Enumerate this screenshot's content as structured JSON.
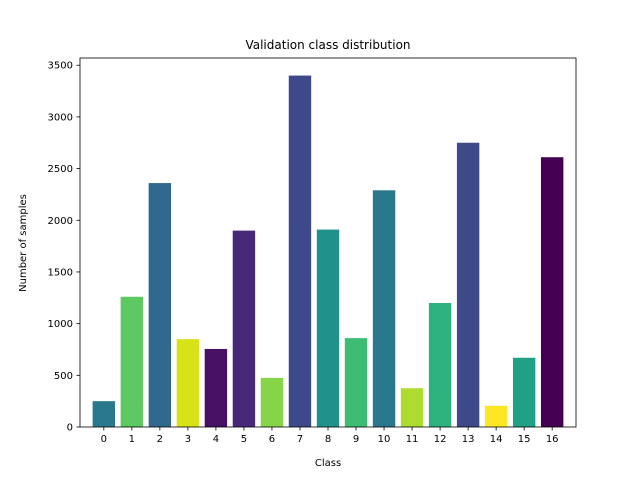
{
  "chart_data": {
    "type": "bar",
    "title": "Validation class distribution",
    "xlabel": "Class",
    "ylabel": "Number of samples",
    "categories": [
      "0",
      "1",
      "2",
      "3",
      "4",
      "5",
      "6",
      "7",
      "8",
      "9",
      "10",
      "11",
      "12",
      "13",
      "14",
      "15",
      "16"
    ],
    "values": [
      250,
      1260,
      2360,
      850,
      755,
      1900,
      475,
      3400,
      1910,
      860,
      2290,
      375,
      1200,
      2750,
      205,
      670,
      2610
    ],
    "colors": [
      "#2a788e",
      "#5ec962",
      "#31688e",
      "#d8e219",
      "#471063",
      "#482878",
      "#86d549",
      "#3e4989",
      "#21918c",
      "#3fbc73",
      "#2a788e",
      "#addc30",
      "#2db27d",
      "#3e4989",
      "#fde725",
      "#1fa187",
      "#440154"
    ],
    "ylim": [
      0,
      3570
    ],
    "yticks": [
      0,
      500,
      1000,
      1500,
      2000,
      2500,
      3000,
      3500
    ],
    "grid": false,
    "legend": "none"
  }
}
